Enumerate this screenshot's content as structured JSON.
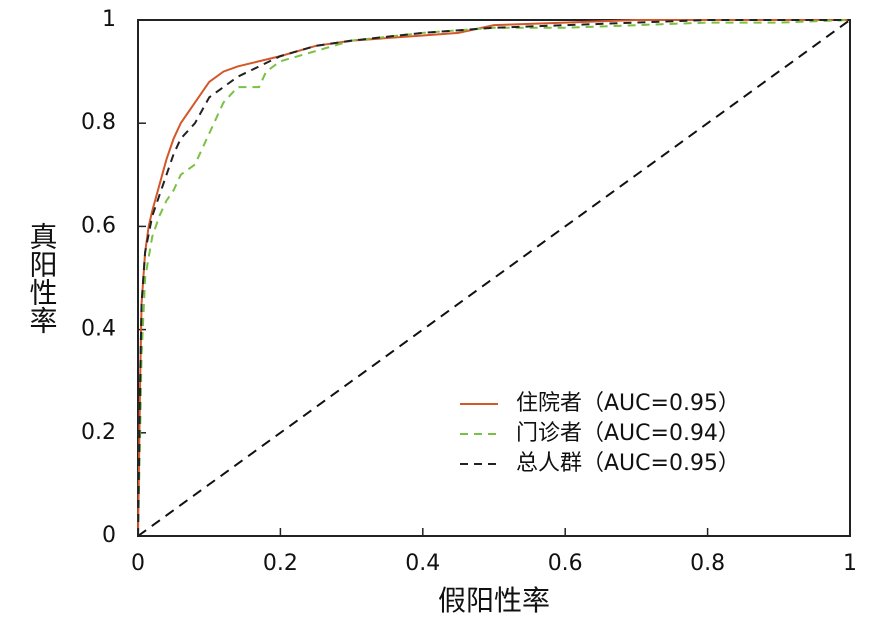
{
  "chart_data": {
    "type": "line",
    "xlabel": "假阳性率",
    "ylabel": "真阳性率",
    "xlim": [
      0,
      1
    ],
    "ylim": [
      0,
      1
    ],
    "xticks": [
      0,
      0.2,
      0.4,
      0.6,
      0.8,
      1
    ],
    "yticks": [
      0,
      0.2,
      0.4,
      0.6,
      0.8,
      1
    ],
    "grid": false,
    "legend": "lower right",
    "series": [
      {
        "name": "住院者（AUC=0.95）",
        "color": "#d4572a",
        "dash": "solid",
        "x": [
          0,
          0.003,
          0.005,
          0.01,
          0.015,
          0.02,
          0.03,
          0.04,
          0.05,
          0.06,
          0.07,
          0.08,
          0.09,
          0.1,
          0.12,
          0.14,
          0.17,
          0.2,
          0.25,
          0.3,
          0.35,
          0.4,
          0.45,
          0.5,
          0.6,
          0.7,
          0.8,
          0.9,
          1
        ],
        "values": [
          0,
          0.3,
          0.45,
          0.55,
          0.6,
          0.63,
          0.68,
          0.73,
          0.77,
          0.8,
          0.82,
          0.84,
          0.86,
          0.88,
          0.9,
          0.91,
          0.92,
          0.93,
          0.95,
          0.96,
          0.965,
          0.97,
          0.975,
          0.99,
          0.995,
          1,
          1,
          1,
          1
        ]
      },
      {
        "name": "门诊者（AUC=0.94）",
        "color": "#7ac143",
        "dash": "dashed",
        "x": [
          0,
          0.003,
          0.005,
          0.01,
          0.02,
          0.03,
          0.04,
          0.05,
          0.06,
          0.08,
          0.1,
          0.12,
          0.14,
          0.17,
          0.18,
          0.2,
          0.25,
          0.3,
          0.4,
          0.5,
          0.6,
          0.7,
          0.8,
          0.9,
          1
        ],
        "values": [
          0,
          0.2,
          0.35,
          0.5,
          0.58,
          0.62,
          0.65,
          0.67,
          0.7,
          0.72,
          0.78,
          0.84,
          0.87,
          0.87,
          0.9,
          0.92,
          0.94,
          0.96,
          0.975,
          0.985,
          0.985,
          0.99,
          0.995,
          0.995,
          1
        ]
      },
      {
        "name": "总人群（AUC=0.95）",
        "color": "#222222",
        "dash": "dashed",
        "x": [
          0,
          0.003,
          0.005,
          0.01,
          0.02,
          0.03,
          0.04,
          0.05,
          0.06,
          0.08,
          0.1,
          0.12,
          0.14,
          0.17,
          0.2,
          0.25,
          0.3,
          0.4,
          0.5,
          0.6,
          0.7,
          0.8,
          0.9,
          1
        ],
        "values": [
          0,
          0.3,
          0.45,
          0.55,
          0.62,
          0.66,
          0.7,
          0.74,
          0.77,
          0.8,
          0.85,
          0.87,
          0.89,
          0.91,
          0.93,
          0.95,
          0.96,
          0.975,
          0.985,
          0.99,
          0.995,
          1,
          1,
          1
        ]
      }
    ]
  }
}
